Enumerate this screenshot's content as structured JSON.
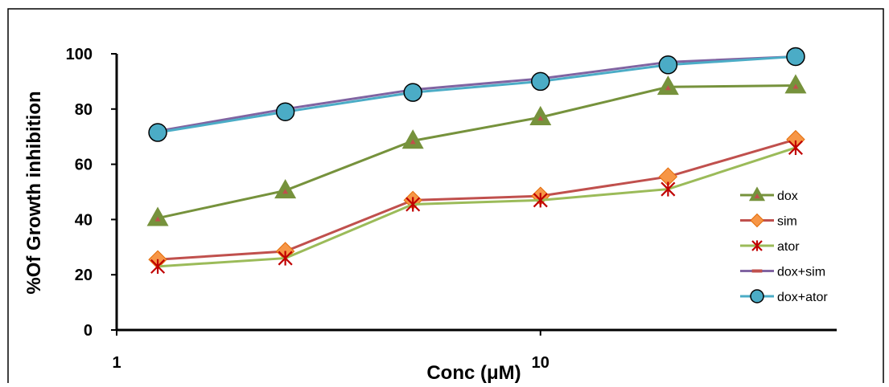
{
  "chart_data": {
    "type": "line",
    "xlabel": "Conc (μM)",
    "ylabel": "%Of Growth inhibition",
    "x_scale": "log",
    "xlim": [
      1,
      50
    ],
    "ylim": [
      0,
      100
    ],
    "y_ticks": [
      "0",
      "20",
      "40",
      "60",
      "80",
      "100"
    ],
    "x_ticks": [
      {
        "value": 1,
        "label": "1"
      },
      {
        "value": 10,
        "label": "10"
      }
    ],
    "x": [
      1.25,
      2.5,
      5,
      10,
      20,
      40
    ],
    "series": [
      {
        "name": "dox",
        "color": "#76923c",
        "marker": "triangle",
        "marker_color": "#76923c",
        "marker_inner": "#c0504d",
        "values": [
          40.5,
          50.5,
          68.5,
          77,
          88,
          88.5
        ]
      },
      {
        "name": "sim",
        "color": "#c0504d",
        "marker": "diamond",
        "marker_color": "#f79646",
        "values": [
          25.5,
          28.5,
          47,
          48.5,
          55.5,
          69
        ]
      },
      {
        "name": "ator",
        "color": "#9bbb59",
        "marker": "star",
        "marker_color": "#c00000",
        "values": [
          23,
          26,
          45.5,
          47,
          51,
          66
        ]
      },
      {
        "name": "dox+sim",
        "color": "#8064a2",
        "marker": "dash",
        "marker_color": "#c0504d",
        "values": [
          72,
          80,
          87,
          91,
          97,
          99
        ]
      },
      {
        "name": "dox+ator",
        "color": "#4bacc6",
        "marker": "circle",
        "marker_color": "#4bacc6",
        "values": [
          71.5,
          79,
          86,
          90,
          96,
          99
        ]
      }
    ],
    "legend_position": "right",
    "grid": false
  }
}
